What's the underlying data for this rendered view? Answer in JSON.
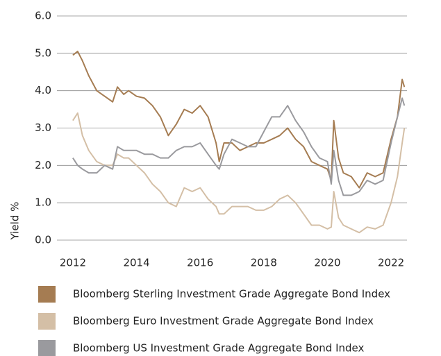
{
  "chart_data": {
    "type": "line",
    "y_label": "Yield %",
    "x": [
      2012.0,
      2012.15,
      2012.3,
      2012.5,
      2012.75,
      2013.0,
      2013.25,
      2013.4,
      2013.6,
      2013.75,
      2014.0,
      2014.25,
      2014.5,
      2014.75,
      2015.0,
      2015.25,
      2015.5,
      2015.75,
      2016.0,
      2016.25,
      2016.5,
      2016.6,
      2016.75,
      2017.0,
      2017.25,
      2017.5,
      2017.75,
      2018.0,
      2018.25,
      2018.5,
      2018.75,
      2019.0,
      2019.25,
      2019.5,
      2019.75,
      2020.0,
      2020.12,
      2020.2,
      2020.35,
      2020.5,
      2020.75,
      2021.0,
      2021.25,
      2021.5,
      2021.75,
      2022.0,
      2022.2,
      2022.35,
      2022.42
    ],
    "series": [
      {
        "name": "Bloomberg Sterling Investment Grade Aggregate Bond Index",
        "color": "#a57c52",
        "values": [
          4.95,
          5.05,
          4.8,
          4.4,
          4.0,
          3.85,
          3.7,
          4.1,
          3.9,
          4.0,
          3.85,
          3.8,
          3.6,
          3.3,
          2.8,
          3.1,
          3.5,
          3.4,
          3.6,
          3.3,
          2.6,
          2.1,
          2.6,
          2.6,
          2.4,
          2.5,
          2.6,
          2.6,
          2.7,
          2.8,
          3.0,
          2.7,
          2.5,
          2.1,
          2.0,
          1.9,
          1.6,
          3.2,
          2.2,
          1.8,
          1.7,
          1.4,
          1.8,
          1.7,
          1.8,
          2.7,
          3.3,
          4.3,
          4.1
        ]
      },
      {
        "name": "Bloomberg Euro Investment Grade Aggregate Bond Index",
        "color": "#d4bfa6",
        "values": [
          3.2,
          3.4,
          2.8,
          2.4,
          2.1,
          2.0,
          2.0,
          2.3,
          2.2,
          2.2,
          2.0,
          1.8,
          1.5,
          1.3,
          1.0,
          0.9,
          1.4,
          1.3,
          1.4,
          1.1,
          0.9,
          0.7,
          0.7,
          0.9,
          0.9,
          0.9,
          0.8,
          0.8,
          0.9,
          1.1,
          1.2,
          1.0,
          0.7,
          0.4,
          0.4,
          0.3,
          0.35,
          1.3,
          0.6,
          0.4,
          0.3,
          0.2,
          0.35,
          0.3,
          0.4,
          1.0,
          1.7,
          2.6,
          3.0
        ]
      },
      {
        "name": "Bloomberg US Investment Grade Aggregate Bond Index",
        "color": "#9a9a9e",
        "values": [
          2.2,
          2.0,
          1.9,
          1.8,
          1.8,
          2.0,
          1.9,
          2.5,
          2.4,
          2.4,
          2.4,
          2.3,
          2.3,
          2.2,
          2.2,
          2.4,
          2.5,
          2.5,
          2.6,
          2.3,
          2.0,
          1.9,
          2.3,
          2.7,
          2.6,
          2.5,
          2.5,
          2.9,
          3.3,
          3.3,
          3.6,
          3.2,
          2.9,
          2.5,
          2.2,
          2.1,
          1.5,
          2.4,
          1.6,
          1.2,
          1.2,
          1.3,
          1.6,
          1.5,
          1.6,
          2.6,
          3.3,
          3.8,
          3.6
        ]
      }
    ],
    "xlim": [
      2011.5,
      2022.5
    ],
    "xticks": [
      2012,
      2014,
      2016,
      2018,
      2020,
      2022
    ],
    "ylim": [
      0,
      6
    ],
    "yticks": [
      {
        "value": 0,
        "label": "0.0"
      },
      {
        "value": 1,
        "label": "1.0"
      },
      {
        "value": 2,
        "label": "2.0"
      },
      {
        "value": 3,
        "label": "3.0"
      },
      {
        "value": 4,
        "label": "4.0"
      },
      {
        "value": 5,
        "label": "5.0"
      },
      {
        "value": 6,
        "label": "6.0"
      }
    ],
    "grid": true
  }
}
